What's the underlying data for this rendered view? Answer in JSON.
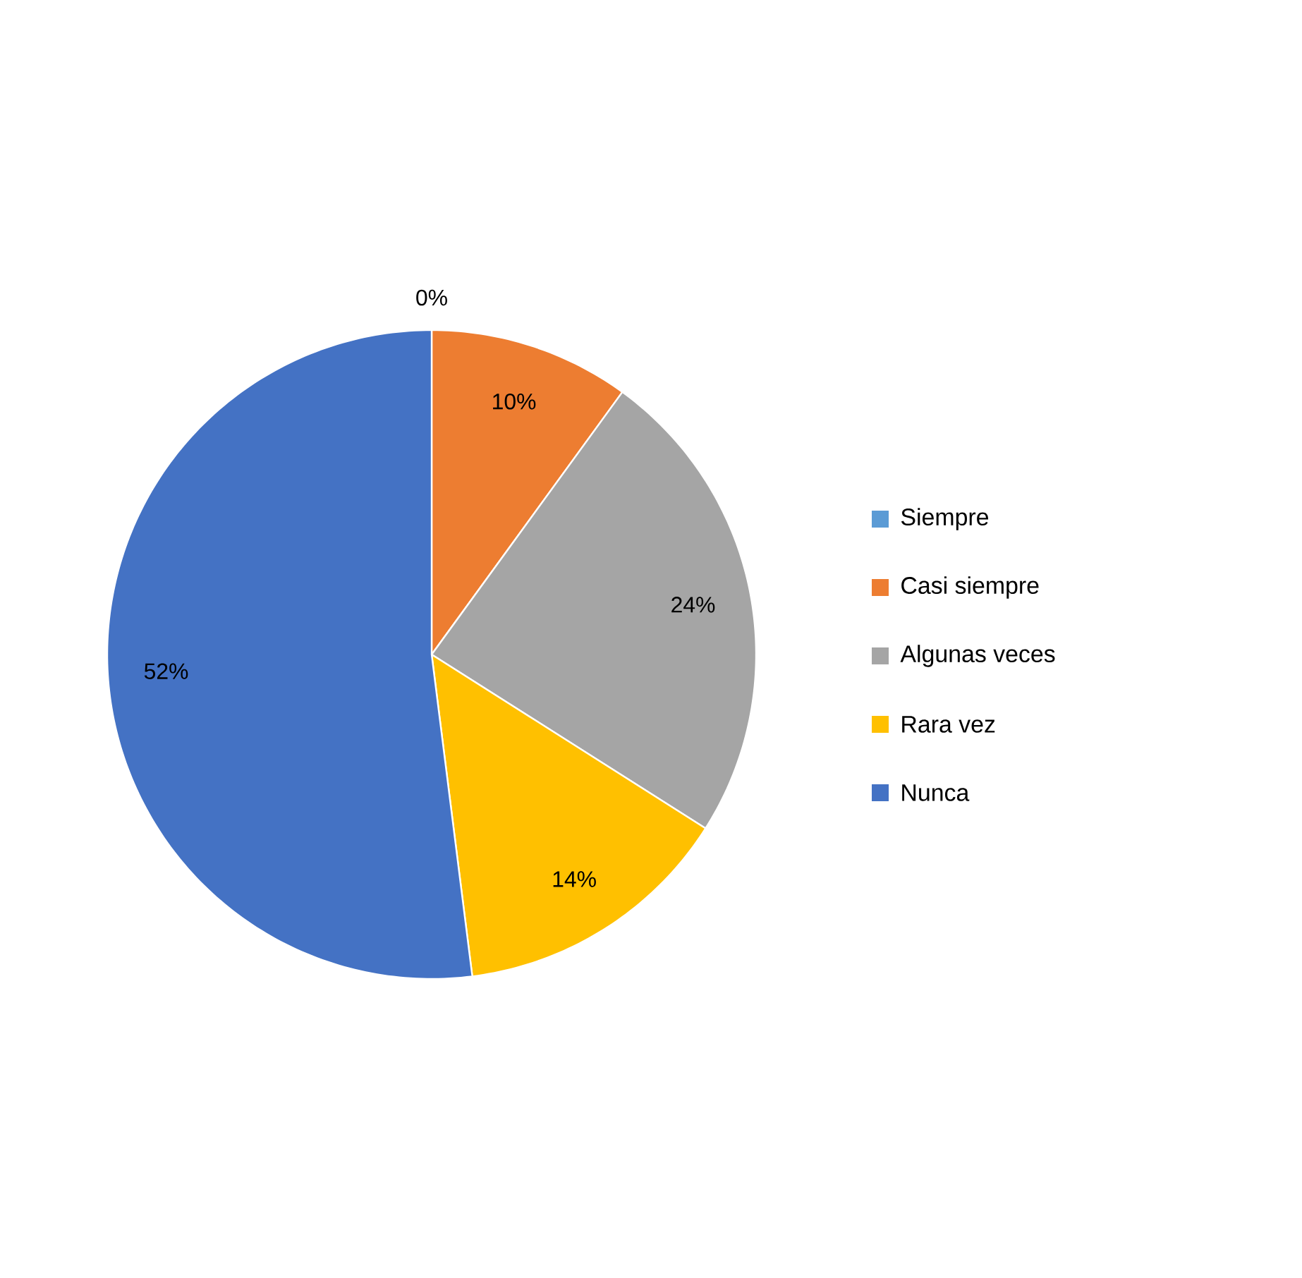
{
  "chart_data": {
    "type": "pie",
    "categories": [
      "Siempre",
      "Casi siempre",
      "Algunas veces",
      "Rara vez",
      "Nunca"
    ],
    "values": [
      0,
      10,
      24,
      14,
      52
    ],
    "colors": [
      "#5b9bd5",
      "#ed7d31",
      "#a5a5a5",
      "#ffc000",
      "#4472c4"
    ],
    "value_labels": [
      "0%",
      "10%",
      "24%",
      "14%",
      "52%"
    ],
    "legend": "right"
  }
}
